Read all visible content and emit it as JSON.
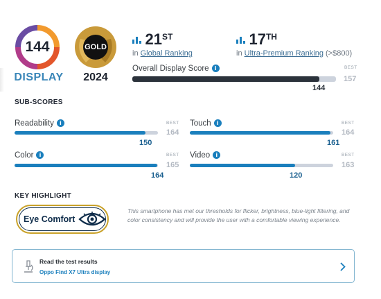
{
  "badge": {
    "score": "144",
    "label": "DISPLAY",
    "award": "GOLD",
    "year": "2024"
  },
  "rankings": {
    "global": {
      "rank": "21",
      "suffix": "ST",
      "prefix": "in",
      "label": "Global Ranking"
    },
    "segment": {
      "rank": "17",
      "suffix": "TH",
      "prefix": "in",
      "label": "Ultra-Premium Ranking",
      "note": "(>$800)"
    }
  },
  "overall": {
    "label": "Overall Display Score",
    "score": 144,
    "best": 157,
    "best_tag": "BEST"
  },
  "subscores": {
    "title": "SUB-SCORES",
    "best_tag": "BEST",
    "items": [
      {
        "label": "Readability",
        "score": 150,
        "best": 164
      },
      {
        "label": "Touch",
        "score": 161,
        "best": 164
      },
      {
        "label": "Color",
        "score": 164,
        "best": 165
      },
      {
        "label": "Video",
        "score": 120,
        "best": 163
      }
    ]
  },
  "highlight": {
    "title": "KEY HIGHLIGHT",
    "badge_label": "Eye Comfort",
    "description": "This smartphone has met our thresholds for flicker, brightness, blue-light filtering, and color consistency and will provide the user with a comfortable viewing experience."
  },
  "results": {
    "title": "Read the test results",
    "link": "Oppo Find X7 Ultra display"
  },
  "colors": {
    "bar_dark": "#2b323b",
    "bar_blue": "#1a7fbd",
    "track": "#cdd3dd",
    "gold": "#c9a22a"
  },
  "icons": {
    "ranking": "bar-chart-icon",
    "info": "info-icon",
    "microscope": "microscope-icon",
    "chevron": "chevron-right-icon",
    "eye": "eye-icon"
  }
}
